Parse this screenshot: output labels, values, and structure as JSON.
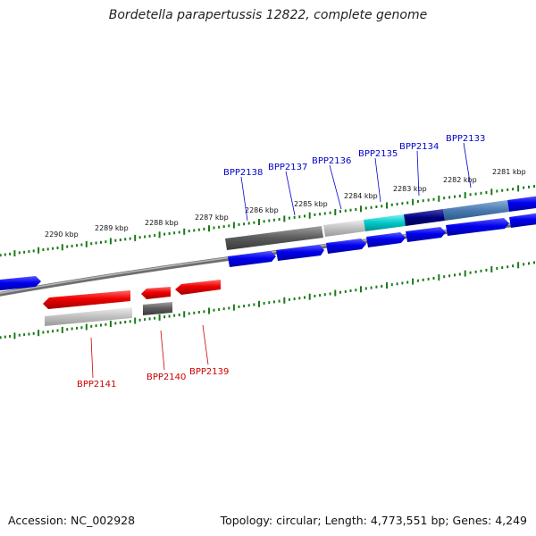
{
  "title": "Bordetella parapertussis 12822, complete genome",
  "footer": {
    "accession": "Accession: NC_002928",
    "topology": "Topology: circular; Length: 4,773,551 bp; Genes: 4,249"
  },
  "colors": {
    "forward_gene": "#0000ee",
    "reverse_gene": "#ee0000",
    "forward_label": "#0000cc",
    "reverse_label": "#cc0000",
    "backbone": "#808080",
    "ticks": "#1a7a1a"
  },
  "kbp_labels": [
    "2290 kbp",
    "2289 kbp",
    "2288 kbp",
    "2287 kbp",
    "2286 kbp",
    "2285 kbp",
    "2284 kbp",
    "2283 kbp",
    "2282 kbp",
    "2281 kbp"
  ],
  "forward_genes": [
    "BPP2138",
    "BPP2137",
    "BPP2136",
    "BPP2135",
    "BPP2134",
    "BPP2133"
  ],
  "reverse_genes": [
    "BPP2141",
    "BPP2140",
    "BPP2139"
  ]
}
